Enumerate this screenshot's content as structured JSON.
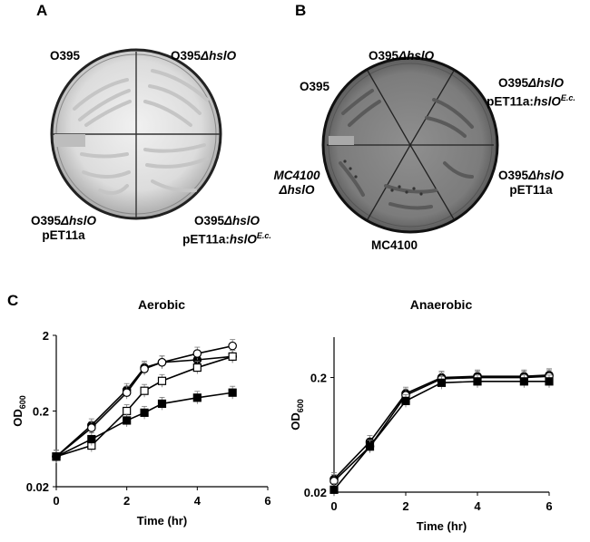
{
  "panels": {
    "a": {
      "letter": "A",
      "labels": {
        "top_left": {
          "strain": "O395"
        },
        "top_right": {
          "strain": "O395",
          "mutation": "ΔhslO"
        },
        "bottom_left": {
          "strain": "O395",
          "mutation": "ΔhslO",
          "plasmid": "pET11a"
        },
        "bottom_right": {
          "strain": "O395",
          "mutation": "ΔhslO",
          "plasmid_prefix": "pET11a:",
          "gene": "hslO",
          "gene_sup": "E.c."
        }
      }
    },
    "b": {
      "letter": "B",
      "labels": {
        "top": {
          "strain": "O395",
          "mutation": "ΔhslO"
        },
        "left": {
          "strain": "O395"
        },
        "right_top": {
          "strain": "O395",
          "mutation": "ΔhslO",
          "plasmid_prefix": "pET11a:",
          "gene": "hslO",
          "gene_sup": "E.c."
        },
        "right_bottom": {
          "strain": "O395",
          "mutation": "ΔhslO",
          "plasmid": "pET11a"
        },
        "left_bottom": {
          "line1": "MC4100",
          "line2": "ΔhslO"
        },
        "bottom": {
          "strain": "MC4100"
        }
      }
    },
    "c": {
      "letter": "C"
    }
  },
  "chart_data": [
    {
      "type": "line",
      "title": "Aerobic",
      "xlabel": "Time (hr)",
      "ylabel": "OD",
      "ylabel_sub": "600",
      "y_scale": "log",
      "xlim": [
        0,
        6
      ],
      "ylim": [
        0.02,
        2
      ],
      "x_ticks": [
        "0",
        "2",
        "4",
        "6"
      ],
      "y_ticks": [
        "0.02",
        "0.2",
        "2"
      ],
      "series": [
        {
          "marker": "filled-circle",
          "x": [
            0,
            1,
            2,
            2.5,
            3,
            4,
            5
          ],
          "y": [
            0.05,
            0.13,
            0.38,
            0.75,
            0.88,
            0.95,
            1.05
          ]
        },
        {
          "marker": "open-circle",
          "x": [
            0,
            1,
            2,
            2.5,
            3,
            4,
            5
          ],
          "y": [
            0.05,
            0.12,
            0.35,
            0.72,
            0.88,
            1.15,
            1.45
          ]
        },
        {
          "marker": "open-square",
          "x": [
            0,
            1,
            2,
            2.5,
            3,
            4,
            5
          ],
          "y": [
            0.05,
            0.07,
            0.2,
            0.37,
            0.5,
            0.75,
            1.05
          ]
        },
        {
          "marker": "filled-square",
          "x": [
            0,
            1,
            2,
            2.5,
            3,
            4,
            5
          ],
          "y": [
            0.05,
            0.085,
            0.15,
            0.19,
            0.25,
            0.3,
            0.35
          ]
        }
      ]
    },
    {
      "type": "line",
      "title": "Anaerobic",
      "xlabel": "Time (hr)",
      "ylabel": "OD",
      "ylabel_sub": "600",
      "y_scale": "log",
      "xlim": [
        0,
        6
      ],
      "ylim": [
        0.02,
        0.45
      ],
      "x_ticks": [
        "0",
        "2",
        "4",
        "6"
      ],
      "y_ticks": [
        "0.02",
        "0.2"
      ],
      "series": [
        {
          "marker": "filled-circle",
          "x": [
            0,
            1,
            2,
            3,
            4,
            5.3,
            6
          ],
          "y": [
            0.026,
            0.055,
            0.145,
            0.2,
            0.205,
            0.205,
            0.21
          ]
        },
        {
          "marker": "open-circle",
          "x": [
            0,
            1,
            2,
            3,
            4,
            5.3,
            6
          ],
          "y": [
            0.025,
            0.05,
            0.14,
            0.195,
            0.2,
            0.2,
            0.205
          ]
        },
        {
          "marker": "filled-square",
          "x": [
            0,
            1,
            2,
            3,
            4,
            5.3,
            6
          ],
          "y": [
            0.021,
            0.05,
            0.125,
            0.18,
            0.185,
            0.185,
            0.185
          ]
        }
      ]
    }
  ]
}
